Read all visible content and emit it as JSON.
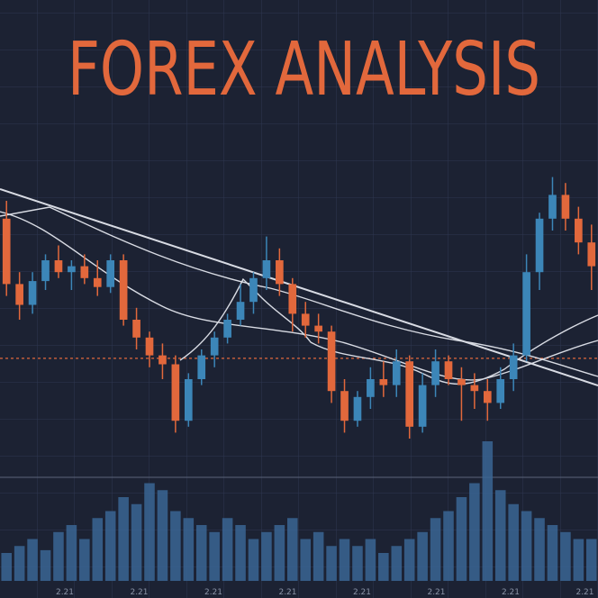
{
  "chart_data": {
    "type": "candlestick",
    "title": "FOREX ANALYSIS",
    "up_color": "#3c86b8",
    "down_color": "#e2683c",
    "volume_color": "#3a6594",
    "ylim": [
      0,
      100
    ],
    "volume_ylim": [
      0,
      100
    ],
    "reference_line": 37,
    "x_labels": [
      "2.21",
      "2.21",
      "2.21",
      "2.21",
      "2.21",
      "2.21",
      "2.21",
      "2.21"
    ],
    "open": [
      84,
      62,
      55,
      63,
      70,
      66,
      68,
      64,
      61,
      70,
      50,
      44,
      38,
      35,
      16,
      30,
      38,
      44,
      50,
      56,
      64,
      70,
      62,
      52,
      48,
      46,
      26,
      16,
      24,
      30,
      28,
      36,
      14,
      28,
      36,
      30,
      28,
      26,
      22,
      30,
      38,
      66,
      84,
      92,
      84,
      76
    ],
    "high": [
      90,
      66,
      66,
      72,
      75,
      70,
      72,
      70,
      72,
      72,
      54,
      46,
      42,
      38,
      32,
      40,
      46,
      52,
      62,
      66,
      78,
      74,
      64,
      56,
      52,
      48,
      30,
      26,
      34,
      36,
      40,
      38,
      32,
      40,
      38,
      34,
      32,
      30,
      34,
      42,
      72,
      86,
      98,
      96,
      88,
      82
    ],
    "low": [
      58,
      50,
      52,
      60,
      64,
      60,
      62,
      58,
      59,
      48,
      40,
      34,
      30,
      12,
      14,
      28,
      34,
      42,
      48,
      52,
      60,
      58,
      46,
      44,
      42,
      22,
      12,
      14,
      20,
      24,
      24,
      10,
      12,
      24,
      28,
      16,
      20,
      16,
      20,
      26,
      36,
      60,
      80,
      80,
      72,
      60
    ],
    "close": [
      62,
      55,
      63,
      70,
      66,
      68,
      64,
      61,
      70,
      50,
      44,
      38,
      35,
      16,
      30,
      38,
      44,
      50,
      56,
      64,
      70,
      62,
      52,
      48,
      46,
      26,
      16,
      24,
      30,
      28,
      36,
      14,
      28,
      36,
      30,
      28,
      26,
      22,
      30,
      38,
      66,
      84,
      92,
      84,
      76,
      68
    ],
    "volume": [
      20,
      25,
      30,
      22,
      35,
      40,
      30,
      45,
      50,
      60,
      55,
      70,
      65,
      50,
      45,
      40,
      35,
      45,
      40,
      30,
      35,
      40,
      45,
      30,
      35,
      25,
      30,
      25,
      30,
      20,
      25,
      30,
      35,
      45,
      50,
      60,
      70,
      100,
      65,
      55,
      50,
      45,
      40,
      35,
      30,
      30
    ]
  }
}
